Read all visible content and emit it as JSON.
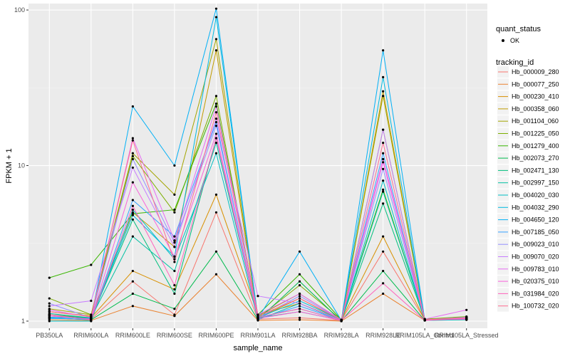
{
  "chart_data": {
    "type": "line",
    "xlabel": "sample_name",
    "ylabel": "FPKM + 1",
    "y_scale": "log10",
    "ylim": [
      0.9,
      110
    ],
    "y_ticks": [
      {
        "value": 1,
        "label": "1"
      },
      {
        "value": 10,
        "label": "10"
      },
      {
        "value": 100,
        "label": "100"
      }
    ],
    "grid": true,
    "background": "#EBEBEB",
    "categories": [
      "PB350LA",
      "RRIM600LA",
      "RRIM600LE",
      "RRIM600SE",
      "RRIM600PE",
      "RRIM901LA",
      "RRIM928BA",
      "RRIM928LA",
      "RRIM928LE",
      "RRIM105LA_Control",
      "RRIM105LA_Stressed"
    ],
    "legend_position": "right",
    "quant_status_legend": {
      "title": "quant_status",
      "items": [
        "OK"
      ]
    },
    "series_legend_title": "tracking_id",
    "series": [
      {
        "name": "Hb_000009_280",
        "color": "#F8766D",
        "values": [
          1.08,
          1.03,
          1.8,
          1.1,
          5.0,
          1.03,
          1.05,
          1.01,
          2.8,
          1.02,
          1.04
        ]
      },
      {
        "name": "Hb_000077_250",
        "color": "#EA8331",
        "values": [
          1.02,
          1.01,
          1.25,
          1.08,
          2.0,
          1.01,
          1.02,
          1.0,
          1.5,
          1.01,
          1.02
        ]
      },
      {
        "name": "Hb_000230_410",
        "color": "#D89000",
        "values": [
          1.1,
          1.05,
          2.1,
          1.6,
          6.5,
          1.1,
          1.3,
          1.02,
          3.5,
          1.02,
          1.05
        ]
      },
      {
        "name": "Hb_000358_060",
        "color": "#C09B00",
        "values": [
          1.15,
          1.08,
          5.0,
          3.0,
          55.0,
          1.05,
          1.4,
          1.01,
          30.0,
          1.03,
          1.06
        ]
      },
      {
        "name": "Hb_001104_060",
        "color": "#A3A500",
        "values": [
          1.2,
          1.1,
          12.0,
          6.5,
          65.0,
          1.08,
          1.5,
          1.02,
          28.0,
          1.02,
          1.05
        ]
      },
      {
        "name": "Hb_001225_050",
        "color": "#7CAE00",
        "values": [
          1.4,
          1.1,
          11.5,
          5.0,
          28.0,
          1.05,
          1.7,
          1.02,
          17.0,
          1.03,
          1.07
        ]
      },
      {
        "name": "Hb_001279_400",
        "color": "#39B600",
        "values": [
          1.9,
          2.3,
          4.9,
          5.2,
          25.0,
          1.1,
          2.0,
          1.02,
          7.0,
          1.02,
          1.05
        ]
      },
      {
        "name": "Hb_002073_270",
        "color": "#00BB4E",
        "values": [
          1.05,
          1.02,
          1.5,
          1.2,
          2.8,
          1.02,
          1.8,
          1.0,
          2.1,
          1.01,
          1.03
        ]
      },
      {
        "name": "Hb_002471_130",
        "color": "#00BF7D",
        "values": [
          1.1,
          1.04,
          4.5,
          1.5,
          15.0,
          1.05,
          1.15,
          1.01,
          5.7,
          1.02,
          1.04
        ]
      },
      {
        "name": "Hb_002997_150",
        "color": "#00C1A3",
        "values": [
          1.12,
          1.05,
          3.5,
          2.1,
          14.0,
          1.06,
          1.2,
          1.01,
          6.8,
          1.02,
          1.04
        ]
      },
      {
        "name": "Hb_004020_030",
        "color": "#00BFC4",
        "values": [
          1.0,
          1.0,
          5.2,
          2.5,
          12.0,
          1.02,
          1.3,
          1.0,
          8.0,
          1.01,
          1.02
        ]
      },
      {
        "name": "Hb_004032_290",
        "color": "#00BAE0",
        "values": [
          1.06,
          1.04,
          4.8,
          2.6,
          90.0,
          1.05,
          1.35,
          1.02,
          37.0,
          1.02,
          1.04
        ]
      },
      {
        "name": "Hb_004650_120",
        "color": "#00B0F6",
        "values": [
          1.04,
          1.03,
          24.0,
          10.0,
          102.0,
          1.04,
          2.8,
          1.01,
          55.0,
          1.02,
          1.03
        ]
      },
      {
        "name": "Hb_007185_050",
        "color": "#35A2FF",
        "values": [
          1.05,
          1.02,
          6.0,
          3.5,
          19.0,
          1.03,
          1.25,
          1.01,
          12.0,
          1.01,
          1.04
        ]
      },
      {
        "name": "Hb_009023_010",
        "color": "#9590FF",
        "values": [
          1.3,
          1.05,
          11.0,
          3.2,
          18.0,
          1.05,
          1.45,
          1.02,
          9.5,
          1.02,
          1.06
        ]
      },
      {
        "name": "Hb_009070_020",
        "color": "#C77CFF",
        "values": [
          1.25,
          1.35,
          9.7,
          3.0,
          20.0,
          1.45,
          1.3,
          1.01,
          17.0,
          1.02,
          1.05
        ]
      },
      {
        "name": "Hb_009783_010",
        "color": "#E76BF3",
        "values": [
          1.18,
          1.06,
          15.0,
          3.3,
          24.0,
          1.1,
          1.5,
          1.02,
          10.5,
          1.03,
          1.18
        ]
      },
      {
        "name": "Hb_020375_010",
        "color": "#FA62DB",
        "values": [
          1.08,
          1.03,
          7.8,
          2.6,
          16.0,
          1.04,
          1.15,
          1.01,
          11.0,
          1.02,
          1.03
        ]
      },
      {
        "name": "Hb_031984_020",
        "color": "#FF62BC",
        "values": [
          1.1,
          1.02,
          5.5,
          1.7,
          15.0,
          1.06,
          1.2,
          1.01,
          1.75,
          1.01,
          1.04
        ]
      },
      {
        "name": "Hb_100732_020",
        "color": "#FF6C91",
        "values": [
          1.15,
          1.07,
          14.5,
          2.4,
          22.0,
          1.08,
          1.4,
          1.02,
          14.0,
          1.02,
          1.05
        ]
      }
    ]
  }
}
